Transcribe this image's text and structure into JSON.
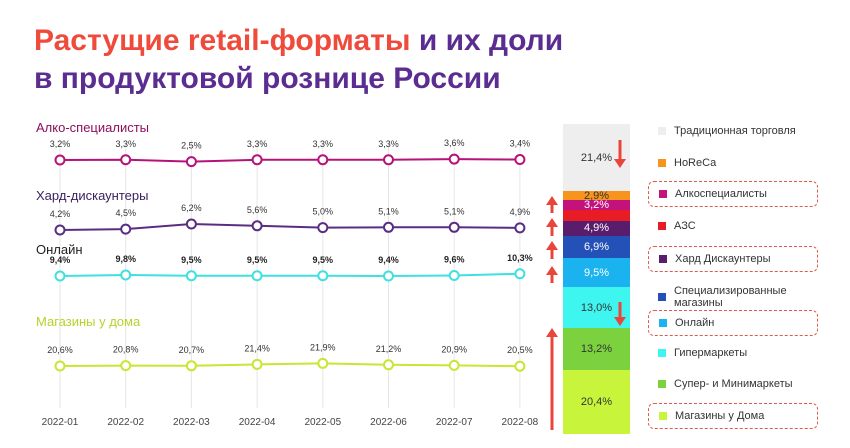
{
  "title": {
    "part1": "Растущие retail-форматы",
    "part2": " и их доли",
    "line2": "в продуктовой рознице России"
  },
  "colors": {
    "title_accent": "#ef4b3c",
    "title_main": "#5b2d91",
    "arrow": "#e8453b"
  },
  "chart_data": {
    "type": "line",
    "x": [
      "2022-01",
      "2022-02",
      "2022-03",
      "2022-04",
      "2022-05",
      "2022-06",
      "2022-07",
      "2022-08"
    ],
    "series": [
      {
        "name": "Алко-специалисты",
        "color": "#b5127a",
        "values": [
          3.2,
          3.3,
          2.5,
          3.3,
          3.3,
          3.3,
          3.6,
          3.4
        ],
        "labels": [
          "3,2%",
          "3,3%",
          "2,5%",
          "3,3%",
          "3,3%",
          "3,3%",
          "3,6%",
          "3,4%"
        ]
      },
      {
        "name": "Хард-дискаунтеры",
        "color": "#5a2d82",
        "values": [
          4.2,
          4.5,
          6.2,
          5.6,
          5.0,
          5.1,
          5.1,
          4.9
        ],
        "labels": [
          "4,2%",
          "4,5%",
          "6,2%",
          "5,6%",
          "5,0%",
          "5,1%",
          "5,1%",
          "4,9%"
        ]
      },
      {
        "name": "Онлайн",
        "color": "#3fe0e0",
        "values": [
          9.4,
          9.8,
          9.5,
          9.5,
          9.5,
          9.4,
          9.6,
          10.3
        ],
        "labels": [
          "9,4%",
          "9,8%",
          "9,5%",
          "9,5%",
          "9,5%",
          "9,4%",
          "9,6%",
          "10,3%"
        ]
      },
      {
        "name": "Магазины у дома",
        "color": "#c8e632",
        "values": [
          20.6,
          20.8,
          20.7,
          21.4,
          21.9,
          21.2,
          20.9,
          20.5
        ],
        "labels": [
          "20,6%",
          "20,8%",
          "20,7%",
          "21,4%",
          "21,9%",
          "21,2%",
          "20,9%",
          "20,5%"
        ]
      }
    ],
    "stacked_bar": {
      "type": "bar",
      "segments": [
        {
          "label": "20,4%",
          "value": 20.4,
          "color": "#c8f53c",
          "text_color": "#333333"
        },
        {
          "label": "13,2%",
          "value": 13.2,
          "color": "#7cd13f",
          "text_color": "#333333"
        },
        {
          "label": "13,0%",
          "value": 13.0,
          "color": "#3ff5f0",
          "text_color": "#333333"
        },
        {
          "label": "9,5%",
          "value": 9.5,
          "color": "#1ab3ef",
          "text_color": "#ffffff"
        },
        {
          "label": "6,9%",
          "value": 6.9,
          "color": "#2451b7",
          "text_color": "#ffffff"
        },
        {
          "label": "4,9%",
          "value": 4.9,
          "color": "#5a1d6e",
          "text_color": "#ffffff"
        },
        {
          "label": "",
          "value": 3.2,
          "color": "#e81c24",
          "text_color": "#ffffff"
        },
        {
          "label": "3,2%",
          "value": 3.2,
          "color": "#c4127c",
          "text_color": "#ffffff"
        },
        {
          "label": "2,9%",
          "value": 2.9,
          "color": "#f7941d",
          "text_color": "#333333"
        },
        {
          "label": "21,4%",
          "value": 21.4,
          "color": "#eeeeee",
          "text_color": "#333333"
        }
      ]
    },
    "legend": [
      {
        "label": "Традиционная торговля",
        "color": "#eeeeee",
        "highlight": false
      },
      {
        "label": "HoReCa",
        "color": "#f7941d",
        "highlight": false
      },
      {
        "label": "Алкоспециалисты",
        "color": "#c4127c",
        "highlight": true
      },
      {
        "label": "АЗС",
        "color": "#e81c24",
        "highlight": false
      },
      {
        "label": "Хард Дискаунтеры",
        "color": "#5a1d6e",
        "highlight": true
      },
      {
        "label": "Специализированные магазины",
        "color": "#2451b7",
        "highlight": false
      },
      {
        "label": "Онлайн",
        "color": "#1ab3ef",
        "highlight": true
      },
      {
        "label": "Гипермаркеты",
        "color": "#3ff5f0",
        "highlight": false
      },
      {
        "label": "Супер- и Минимаркеты",
        "color": "#7cd13f",
        "highlight": false
      },
      {
        "label": "Магазины у Дома",
        "color": "#c8f53c",
        "highlight": true
      }
    ]
  }
}
